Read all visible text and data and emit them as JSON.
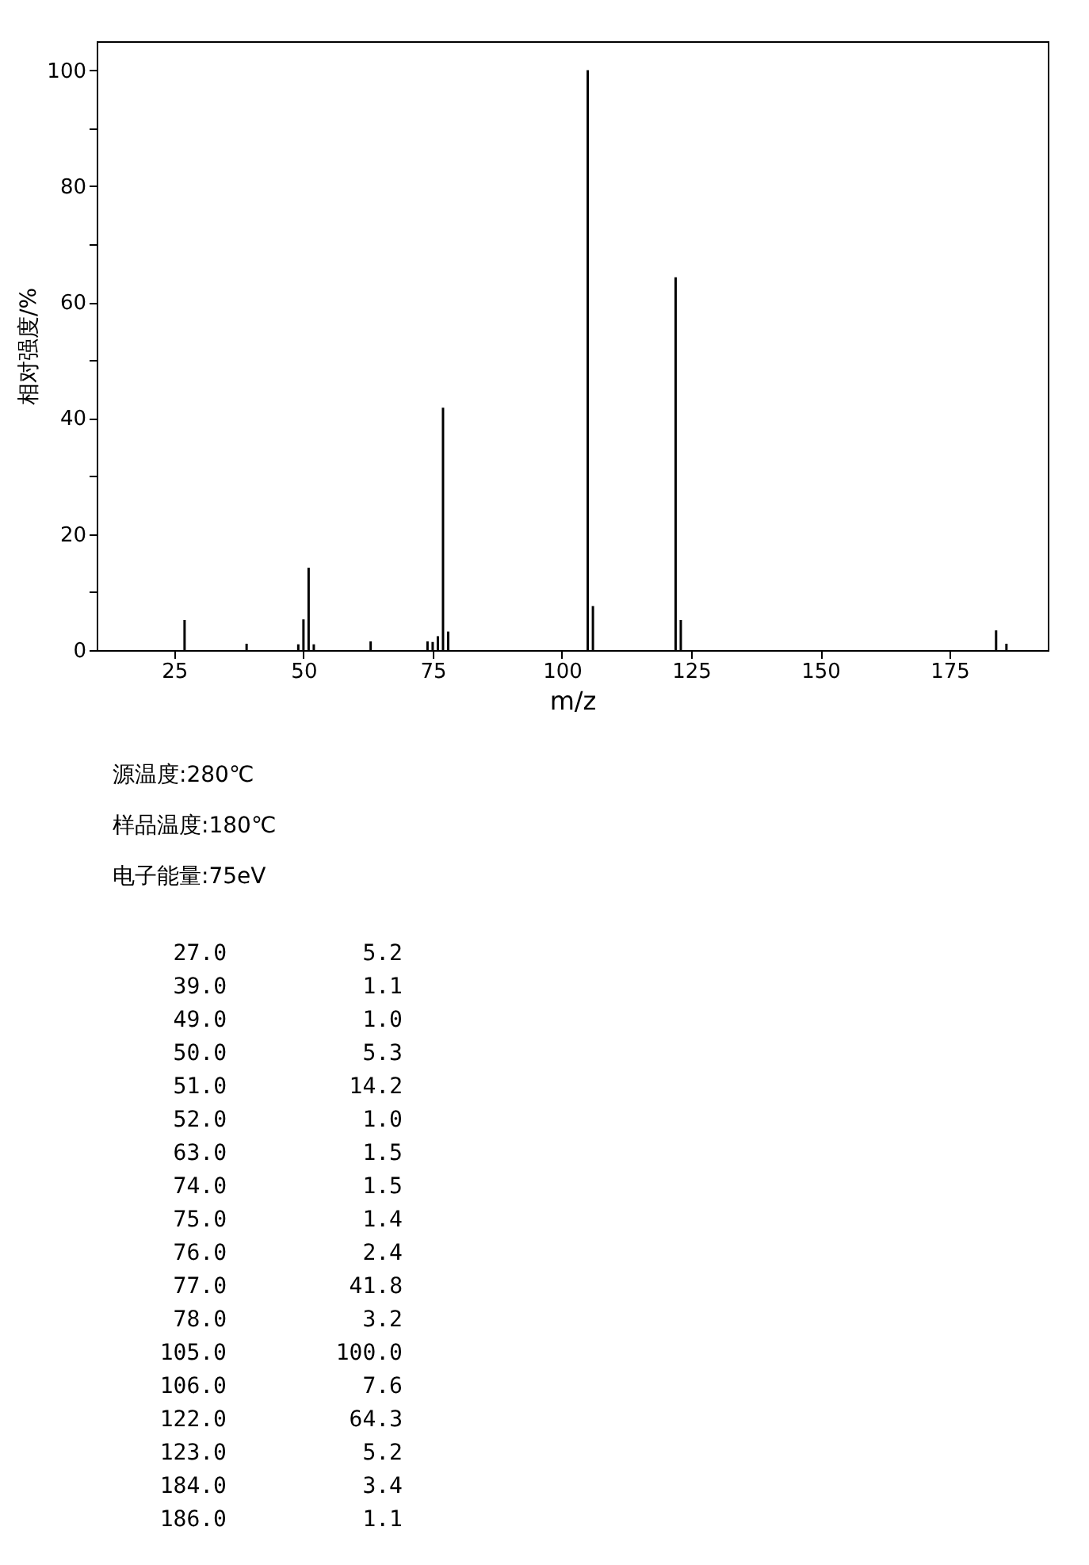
{
  "chart_data": {
    "type": "bar",
    "xlabel": "m/z",
    "ylabel": "相对强度/%",
    "x": [
      27.0,
      39.0,
      49.0,
      50.0,
      51.0,
      52.0,
      63.0,
      74.0,
      75.0,
      76.0,
      77.0,
      78.0,
      105.0,
      106.0,
      122.0,
      123.0,
      184.0,
      186.0
    ],
    "values": [
      5.2,
      1.1,
      1.0,
      5.3,
      14.2,
      1.0,
      1.5,
      1.5,
      1.4,
      2.4,
      41.8,
      3.2,
      100.0,
      7.6,
      64.3,
      5.2,
      3.4,
      1.1
    ],
    "color": "#000000",
    "xlim": [
      10,
      194
    ],
    "xticks": [
      25,
      50,
      75,
      100,
      125,
      150,
      175
    ],
    "ylim": [
      0,
      105
    ],
    "yticks": [
      0,
      {
        "value": 10,
        "label": null
      },
      20,
      {
        "value": 30,
        "label": null
      },
      40,
      {
        "value": 50,
        "label": null
      },
      60,
      {
        "value": 70,
        "label": null
      },
      80,
      {
        "value": 90,
        "label": null
      },
      100
    ],
    "annotations": [
      "源温度:280℃",
      "样品温度:180℃",
      "电子能量:75eV",
      "27.0",
      "5.2",
      "39.0",
      "1.1",
      "49.0",
      "1.0",
      "50.0",
      "5.3",
      "51.0",
      "14.2",
      "52.0",
      "1.0",
      "63.0",
      "1.5",
      "74.0",
      "1.5",
      "75.0",
      "1.4",
      "76.0",
      "2.4",
      "77.0",
      "41.8",
      "78.0",
      "3.2",
      "105.0",
      "100.0",
      "106.0",
      "7.6",
      "122.0",
      "64.3",
      "123.0",
      "5.2",
      "184.0",
      "3.4",
      "186.0",
      "1.1"
    ]
  }
}
